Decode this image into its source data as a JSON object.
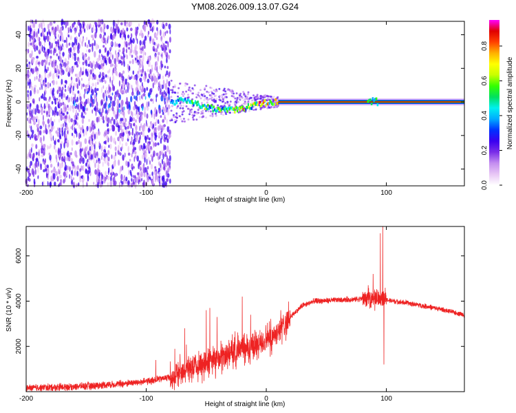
{
  "figure": {
    "title": "YM08.2026.009.13.07.G24"
  },
  "chart_data": [
    {
      "type": "heatmap",
      "name": "spectrogram",
      "xlabel": "Height of straight line (km)",
      "ylabel": "Frequency (Hz)",
      "xlim": [
        -200,
        165
      ],
      "ylim": [
        -50,
        48
      ],
      "xticks": [
        "-200",
        "-100",
        "0",
        "100"
      ],
      "xtick_values": [
        -200,
        -100,
        0,
        100
      ],
      "yticks": [
        "40",
        "20",
        "0",
        "-20",
        "-40"
      ],
      "ytick_values": [
        40,
        20,
        0,
        -20,
        -40
      ],
      "colorbar": {
        "label": "Normalized spectral amplitude",
        "range": [
          0,
          0.95
        ],
        "ticks": [
          "0.0",
          "0.2",
          "0.4",
          "0.6",
          "0.8"
        ],
        "tick_values": [
          0.0,
          0.2,
          0.4,
          0.6,
          0.8
        ],
        "colors": [
          "#ffffff",
          "#e8c6f5",
          "#c48ef0",
          "#7a2ee8",
          "#3a00f0",
          "#0030ff",
          "#00aaff",
          "#00f0f0",
          "#00e060",
          "#33ff00",
          "#c8ff00",
          "#ffff00",
          "#ffb000",
          "#ff4000",
          "#e00000",
          "#ff00ff"
        ]
      },
      "features": {
        "noise_region_x": [
          -200,
          -80
        ],
        "transition_region_x": [
          -80,
          10
        ],
        "carrier_region_x": [
          10,
          165
        ],
        "carrier_frequency_hz": 0,
        "transition_trace": [
          {
            "x": -75,
            "y": 2
          },
          {
            "x": -60,
            "y": -1
          },
          {
            "x": -45,
            "y": -4
          },
          {
            "x": -30,
            "y": -5
          },
          {
            "x": -15,
            "y": -3
          },
          {
            "x": -5,
            "y": -1
          },
          {
            "x": 5,
            "y": 0
          },
          {
            "x": 10,
            "y": 0
          }
        ],
        "carrier_blip_x": [
          84,
          92
        ]
      }
    },
    {
      "type": "line",
      "name": "snr",
      "xlabel": "Height of straight line (km)",
      "ylabel": "SNR (10 * v/v)",
      "xlim": [
        -200,
        165
      ],
      "ylim": [
        0,
        7300
      ],
      "xticks": [
        "-200",
        "-100",
        "0",
        "100"
      ],
      "xtick_values": [
        -200,
        -100,
        0,
        100
      ],
      "yticks": [
        "2000",
        "4000",
        "6000"
      ],
      "ytick_values": [
        2000,
        4000,
        6000
      ],
      "color": "#ee2222",
      "series": [
        {
          "name": "SNR",
          "envelope": [
            {
              "x": -200,
              "y": 150
            },
            {
              "x": -150,
              "y": 250
            },
            {
              "x": -120,
              "y": 350
            },
            {
              "x": -100,
              "y": 450
            },
            {
              "x": -80,
              "y": 650
            },
            {
              "x": -70,
              "y": 900
            },
            {
              "x": -50,
              "y": 1300
            },
            {
              "x": -30,
              "y": 1700
            },
            {
              "x": -10,
              "y": 2000
            },
            {
              "x": 0,
              "y": 2300
            },
            {
              "x": 10,
              "y": 2700
            },
            {
              "x": 20,
              "y": 3300
            },
            {
              "x": 30,
              "y": 3800
            },
            {
              "x": 40,
              "y": 4000
            },
            {
              "x": 60,
              "y": 4050
            },
            {
              "x": 80,
              "y": 4100
            },
            {
              "x": 90,
              "y": 4150
            },
            {
              "x": 100,
              "y": 4050
            },
            {
              "x": 120,
              "y": 3900
            },
            {
              "x": 140,
              "y": 3700
            },
            {
              "x": 165,
              "y": 3400
            }
          ],
          "spikes": [
            {
              "x": -92,
              "y": 1400
            },
            {
              "x": -68,
              "y": 2800
            },
            {
              "x": -50,
              "y": 3600
            },
            {
              "x": -47,
              "y": 3700
            },
            {
              "x": -41,
              "y": 3300
            },
            {
              "x": -20,
              "y": 4200
            },
            {
              "x": -13,
              "y": 3400
            },
            {
              "x": 12,
              "y": 3600
            },
            {
              "x": 89,
              "y": 5200
            },
            {
              "x": 95,
              "y": 7000
            },
            {
              "x": 97,
              "y": 7300
            },
            {
              "x": 98,
              "y": 1200
            }
          ]
        }
      ]
    }
  ]
}
